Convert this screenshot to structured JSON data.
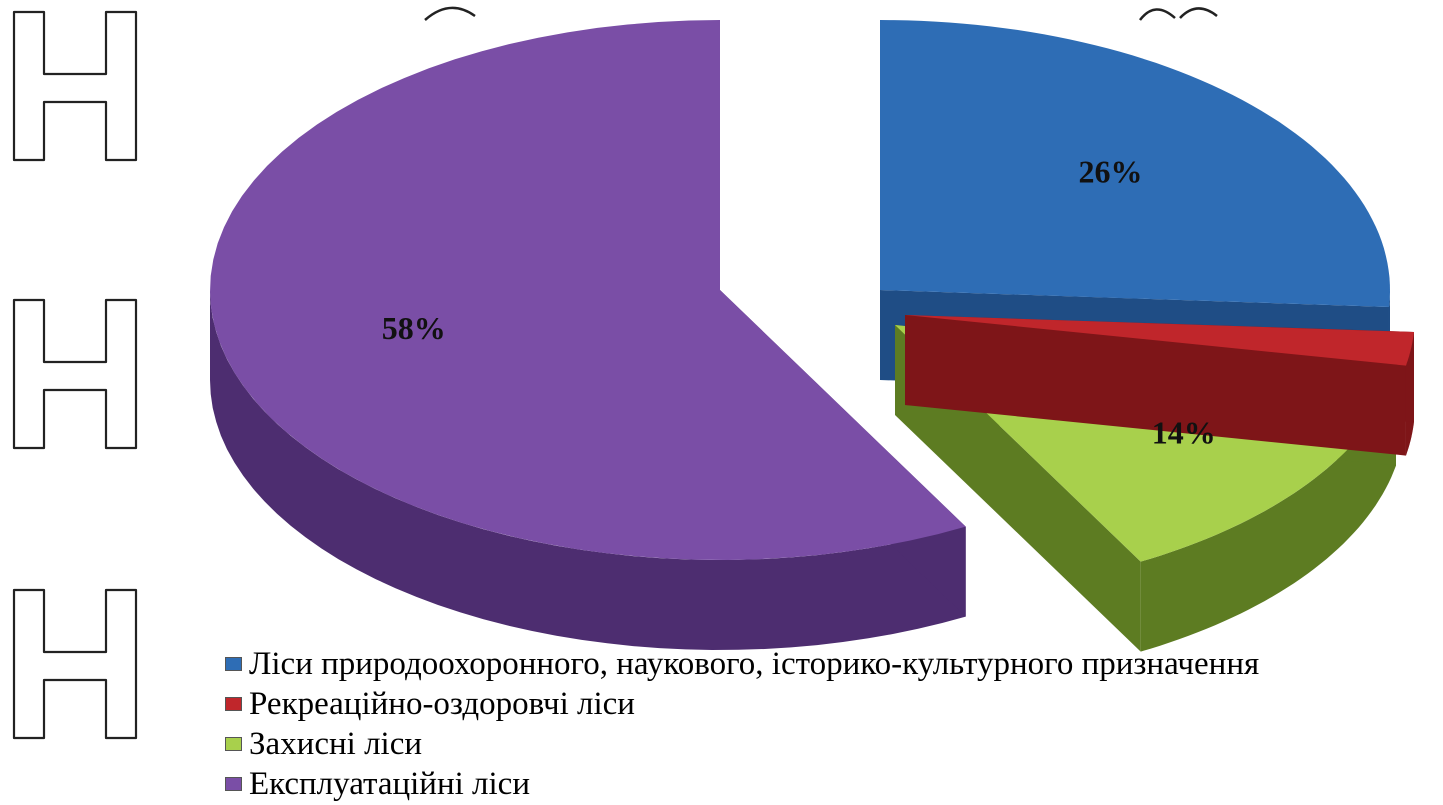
{
  "chart_data": {
    "type": "pie",
    "style": "3d-exploded",
    "slices": [
      {
        "label": "Ліси природоохоронного, наукового, історико-культурного призначення",
        "value": 26,
        "display": "26%",
        "color": "#2e6db5",
        "side_color": "#1f4d85"
      },
      {
        "label": "Рекреаційно-оздоровчі ліси",
        "value": 2,
        "display": "2%",
        "color": "#c0262b",
        "side_color": "#7e1518"
      },
      {
        "label": "Захисні ліси",
        "value": 14,
        "display": "14%",
        "color": "#a8d04c",
        "side_color": "#5d7c22"
      },
      {
        "label": "Експлуатаційні ліси",
        "value": 58,
        "display": "58%",
        "color": "#7a4ea6",
        "side_color": "#4d2d70"
      }
    ],
    "legend_position": "bottom"
  }
}
